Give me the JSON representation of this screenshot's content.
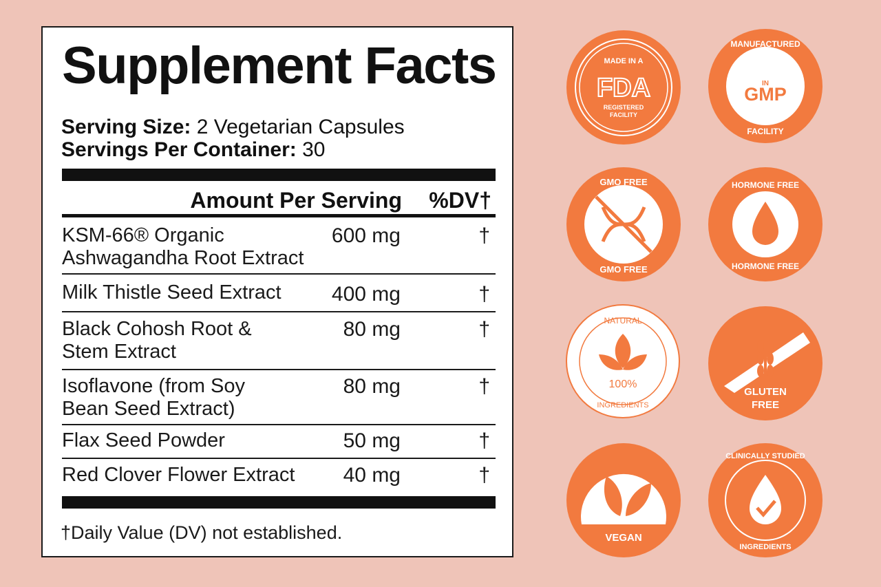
{
  "panel": {
    "title": "Supplement Facts",
    "serving_size_label": "Serving Size:",
    "serving_size_value": "2 Vegetarian Capsules",
    "servings_per_container_label": "Servings Per Container:",
    "servings_per_container_value": "30",
    "header_amount": "Amount Per Serving",
    "header_dv": "%DV†",
    "rows": [
      {
        "name": "KSM-66® Organic Ashwagandha Root Extract",
        "amount": "600 mg",
        "dv": "†"
      },
      {
        "name": "Milk Thistle Seed Extract",
        "amount": "400 mg",
        "dv": "†"
      },
      {
        "name": "Black Cohosh Root & Stem Extract",
        "amount": "80 mg",
        "dv": "†"
      },
      {
        "name": "Isoflavone (from Soy Bean Seed Extract)",
        "amount": "80 mg",
        "dv": "†"
      },
      {
        "name": "Flax Seed Powder",
        "amount": "50 mg",
        "dv": "†"
      },
      {
        "name": "Red Clover Flower Extract",
        "amount": "40 mg",
        "dv": "†"
      }
    ],
    "footnote": "†Daily Value (DV) not established."
  },
  "badges": {
    "fda": {
      "top": "MADE IN A",
      "main": "FDA",
      "bottom1": "REGISTERED",
      "bottom2": "FACILITY",
      "icon": "fda-icon"
    },
    "gmp": {
      "top": "MANUFACTURED",
      "mid": "IN",
      "main": "GMP",
      "bottom": "FACILITY",
      "icon": "gmp-icon"
    },
    "gmo": {
      "top": "GMO FREE",
      "bottom": "GMO FREE",
      "icon": "dna-icon"
    },
    "hormone": {
      "top": "HORMONE FREE",
      "bottom": "HORMONE FREE",
      "icon": "droplet-icon"
    },
    "natural": {
      "top": "NATURAL",
      "main": "100%",
      "bottom": "INGREDIENTS",
      "icon": "leaf-icon"
    },
    "gluten": {
      "line1": "GLUTEN",
      "line2": "FREE",
      "icon": "wheat-icon"
    },
    "vegan": {
      "label": "VEGAN",
      "icon": "leaves-icon"
    },
    "clinical": {
      "top": "CLINICALLY STUDIED",
      "bottom": "INGREDIENTS",
      "icon": "check-droplet-icon"
    }
  },
  "colors": {
    "background": "#efc4b8",
    "badge_orange": "#f27a3f",
    "text_dark": "#111111"
  }
}
